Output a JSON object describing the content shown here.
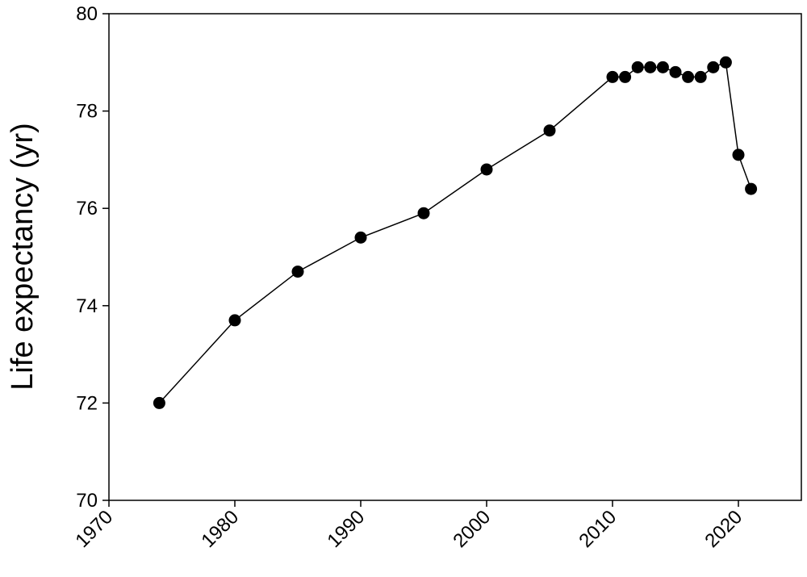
{
  "chart_data": {
    "type": "line",
    "y_label": "Life expectancy (yr)",
    "x": [
      1974,
      1980,
      1985,
      1990,
      1995,
      2000,
      2005,
      2010,
      2011,
      2012,
      2013,
      2014,
      2015,
      2016,
      2017,
      2018,
      2019,
      2020,
      2021
    ],
    "values": [
      72.0,
      73.7,
      74.7,
      75.4,
      75.9,
      76.8,
      77.6,
      78.7,
      78.7,
      78.9,
      78.9,
      78.9,
      78.8,
      78.7,
      78.7,
      78.9,
      79.0,
      77.1,
      76.4
    ],
    "color": "#000000",
    "markers": true,
    "xlim": [
      1970,
      2025
    ],
    "xticks": [
      1970,
      1980,
      1990,
      2000,
      2010,
      2020
    ],
    "ylim": [
      70,
      80
    ],
    "yticks": [
      70,
      72,
      74,
      76,
      78,
      80
    ],
    "grid": false
  }
}
